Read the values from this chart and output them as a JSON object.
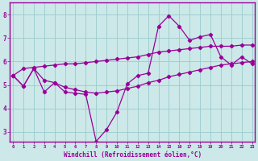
{
  "xlabel": "Windchill (Refroidissement éolien,°C)",
  "background_color": "#cce8e8",
  "grid_color": "#99cccc",
  "line_color": "#990099",
  "x_ticks": [
    0,
    1,
    2,
    3,
    4,
    5,
    6,
    7,
    8,
    9,
    10,
    11,
    12,
    13,
    14,
    15,
    16,
    17,
    18,
    19,
    20,
    21,
    22,
    23
  ],
  "y_ticks": [
    3,
    4,
    5,
    6,
    7,
    8
  ],
  "ylim": [
    2.6,
    8.5
  ],
  "xlim": [
    -0.3,
    23.3
  ],
  "line_volatile_x": [
    0,
    1,
    2,
    3,
    4,
    5,
    6,
    7,
    8,
    9,
    10,
    11,
    12,
    13,
    14,
    15,
    16,
    17,
    18,
    19,
    20,
    21,
    22,
    23
  ],
  "line_volatile_y": [
    5.4,
    4.95,
    5.7,
    4.7,
    5.1,
    4.7,
    4.65,
    4.6,
    2.6,
    3.1,
    3.85,
    5.05,
    5.4,
    5.5,
    7.5,
    7.95,
    7.5,
    6.9,
    7.05,
    7.15,
    6.2,
    5.85,
    6.2,
    5.9
  ],
  "line_upper_x": [
    0,
    1,
    2,
    3,
    4,
    5,
    6,
    7,
    8,
    9,
    10,
    11,
    12,
    13,
    14,
    15,
    16,
    17,
    18,
    19,
    20,
    21,
    22,
    23
  ],
  "line_upper_y": [
    5.4,
    5.7,
    5.75,
    5.8,
    5.85,
    5.9,
    5.9,
    5.95,
    6.0,
    6.05,
    6.1,
    6.15,
    6.2,
    6.3,
    6.4,
    6.45,
    6.5,
    6.55,
    6.6,
    6.65,
    6.65,
    6.65,
    6.7,
    6.7
  ],
  "line_lower_x": [
    0,
    1,
    2,
    3,
    4,
    5,
    6,
    7,
    8,
    9,
    10,
    11,
    12,
    13,
    14,
    15,
    16,
    17,
    18,
    19,
    20,
    21,
    22,
    23
  ],
  "line_lower_y": [
    5.4,
    4.95,
    5.7,
    5.2,
    5.1,
    4.9,
    4.8,
    4.7,
    4.65,
    4.7,
    4.75,
    4.85,
    4.95,
    5.1,
    5.2,
    5.35,
    5.45,
    5.55,
    5.65,
    5.75,
    5.85,
    5.9,
    5.95,
    6.0
  ]
}
